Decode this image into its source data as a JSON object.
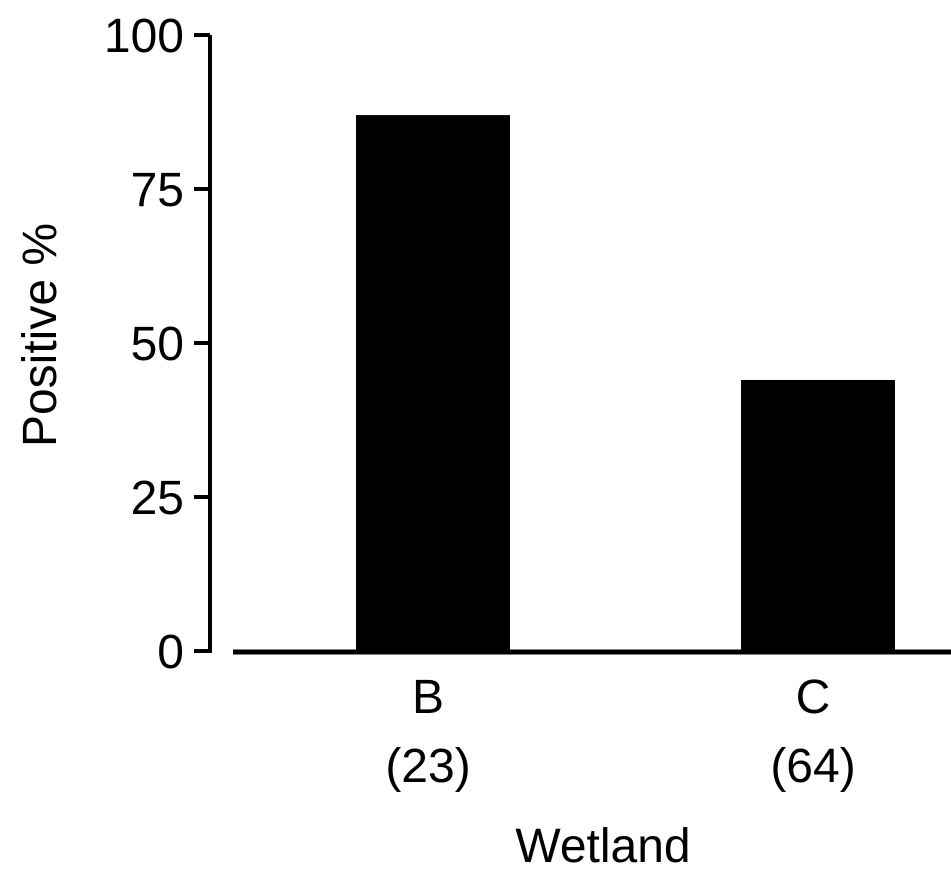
{
  "chart_data": {
    "type": "bar",
    "title": "",
    "xlabel": "Wetland",
    "ylabel": "Positive %",
    "ylim": [
      0,
      100
    ],
    "yticks": [
      0,
      25,
      50,
      75,
      100
    ],
    "ytick_labels": [
      "0",
      "25",
      "50",
      "75",
      "100"
    ],
    "categories": [
      "B",
      "C"
    ],
    "category_sublabels": [
      "(23)",
      "(64)"
    ],
    "values": [
      87,
      44
    ],
    "grid": false,
    "legend": "none",
    "bar_color": "#000000"
  }
}
